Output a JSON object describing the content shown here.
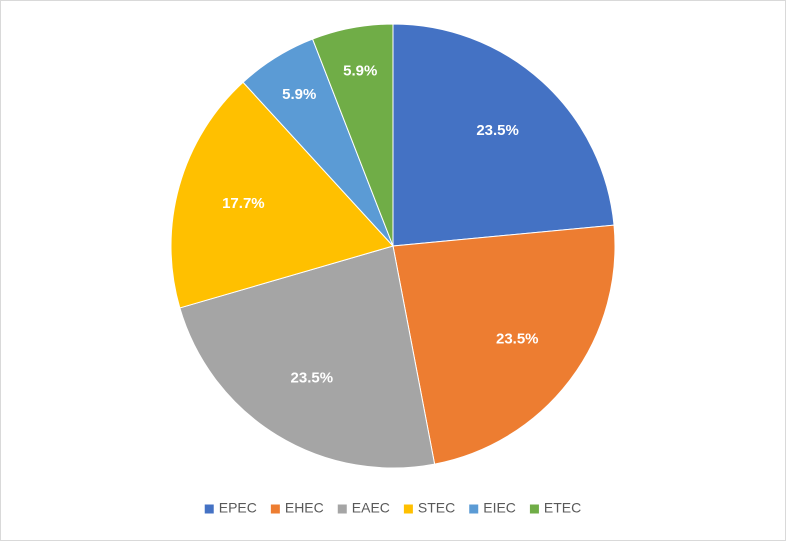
{
  "chart_data": {
    "type": "pie",
    "categories": [
      "EPEC",
      "EHEC",
      "EAEC",
      "STEC",
      "EIEC",
      "ETEC"
    ],
    "values": [
      23.5,
      23.5,
      23.5,
      17.7,
      5.9,
      5.9
    ],
    "value_labels": [
      "23.5%",
      "23.5%",
      "23.5%",
      "17.7%",
      "5.9%",
      "5.9%"
    ],
    "colors": [
      "#4472c4",
      "#ed7d31",
      "#a5a5a5",
      "#ffc000",
      "#5b9bd5",
      "#70ad47"
    ],
    "legend": "bottom"
  }
}
